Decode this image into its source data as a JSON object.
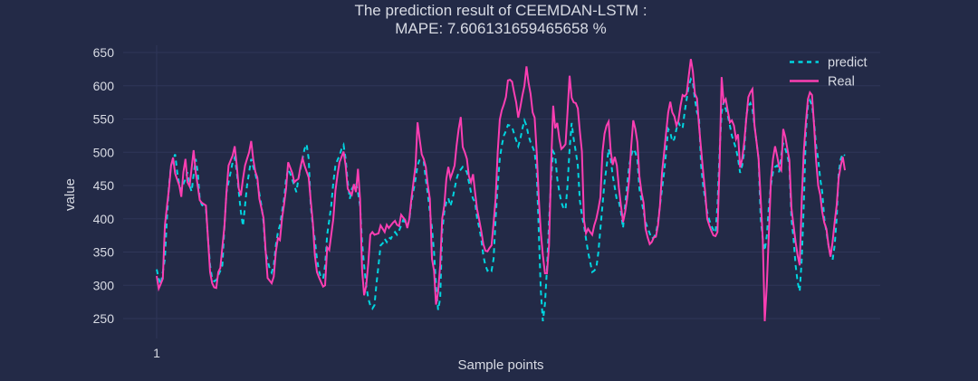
{
  "title": {
    "line1": "The prediction result of CEEMDAN-LSTM :",
    "line2": "MAPE: 7.606131659465658 %"
  },
  "legend": {
    "items": [
      {
        "label": "predict",
        "color": "#00d5e0",
        "dash": "dashed"
      },
      {
        "label": "Real",
        "color": "#fb3eb2",
        "dash": "solid"
      }
    ]
  },
  "axes": {
    "y_title": "value",
    "x_title": "Sample points",
    "y_ticks": [
      650,
      600,
      550,
      500,
      450,
      400,
      350,
      300,
      250
    ],
    "x_ticks": [
      "1"
    ]
  },
  "colors": {
    "background": "#232a47",
    "gridline": "#2f3659",
    "text": "#d8dbe4",
    "predict_line": "#00d5e0",
    "real_line": "#fb3eb2"
  },
  "chart_data": {
    "type": "line",
    "title": "The prediction result of CEEMDAN-LSTM : MAPE: 7.606131659465658 %",
    "xlabel": "Sample points",
    "ylabel": "value",
    "x_start": 1,
    "x_step": 1,
    "n_points": 336,
    "ylim": [
      230,
      660
    ],
    "y_ticks": [
      250,
      300,
      350,
      400,
      450,
      500,
      550,
      600,
      650
    ],
    "grid": true,
    "legend_position": "top-right",
    "series": [
      {
        "name": "predict",
        "style": "dashed",
        "color": "#00d5e0",
        "values": [
          324,
          310,
          301,
          320,
          340,
          400,
          450,
          480,
          488,
          497,
          470,
          452,
          443,
          452,
          460,
          470,
          450,
          441,
          466,
          490,
          470,
          430,
          421,
          418,
          415,
          370,
          330,
          310,
          306,
          308,
          315,
          322,
          330,
          390,
          440,
          455,
          470,
          485,
          492,
          470,
          440,
          410,
          389,
          420,
          450,
          470,
          490,
          478,
          468,
          455,
          438,
          420,
          395,
          350,
          338,
          325,
          319,
          330,
          360,
          380,
          390,
          410,
          430,
          460,
          475,
          468,
          459,
          450,
          440,
          460,
          475,
          490,
          505,
          512,
          490,
          420,
          390,
          369,
          340,
          322,
          312,
          310,
          330,
          376,
          398,
          420,
          455,
          480,
          488,
          495,
          505,
          511,
          490,
          455,
          430,
          445,
          450,
          454,
          440,
          420,
          364,
          330,
          300,
          280,
          270,
          265,
          270,
          302,
          330,
          360,
          363,
          370,
          365,
          372,
          370,
          376,
          380,
          376,
          382,
          390,
          398,
          394,
          389,
          398,
          425,
          442,
          460,
          480,
          489,
          488,
          486,
          460,
          436,
          410,
          387,
          350,
          300,
          263,
          280,
          380,
          410,
          425,
          431,
          419,
          430,
          445,
          460,
          470,
          474,
          478,
          475,
          470,
          455,
          440,
          430,
          425,
          400,
          387,
          370,
          345,
          330,
          322,
          325,
          322,
          340,
          400,
          450,
          490,
          510,
          525,
          532,
          541,
          540,
          538,
          528,
          518,
          509,
          520,
          535,
          548,
          540,
          525,
          515,
          508,
          500,
          470,
          380,
          292,
          246,
          272,
          325,
          395,
          460,
          501,
          495,
          460,
          440,
          425,
          416,
          414,
          450,
          505,
          544,
          520,
          501,
          480,
          428,
          405,
          390,
          370,
          350,
          335,
          320,
          322,
          326,
          350,
          385,
          420,
          455,
          478,
          505,
          490,
          465,
          447,
          428,
          426,
          410,
          386,
          420,
          450,
          480,
          495,
          505,
          500,
          488,
          445,
          428,
          410,
          395,
          386,
          378,
          370,
          372,
          378,
          395,
          420,
          445,
          470,
          500,
          535,
          530,
          516,
          520,
          535,
          545,
          538,
          536,
          560,
          580,
          600,
          610,
          605,
          580,
          560,
          553,
          480,
          450,
          430,
          410,
          398,
          390,
          383,
          379,
          420,
          500,
          560,
          576,
          565,
          555,
          540,
          525,
          515,
          505,
          490,
          469,
          480,
          500,
          555,
          570,
          574,
          565,
          540,
          516,
          490,
          400,
          370,
          352,
          375,
          420,
          450,
          470,
          478,
          480,
          470,
          495,
          514,
          505,
          495,
          480,
          400,
          370,
          330,
          305,
          291,
          340,
          420,
          530,
          570,
          578,
          570,
          545,
          510,
          490,
          460,
          440,
          400,
          380,
          360,
          345,
          338,
          360,
          400,
          470,
          490,
          498,
          495
        ]
      },
      {
        "name": "Real",
        "style": "solid",
        "color": "#fb3eb2",
        "values": [
          314,
          295,
          302,
          310,
          390,
          418,
          445,
          480,
          492,
          468,
          459,
          450,
          433,
          470,
          490,
          455,
          449,
          476,
          503,
          470,
          449,
          428,
          424,
          422,
          420,
          370,
          320,
          303,
          297,
          296,
          320,
          326,
          358,
          390,
          440,
          480,
          488,
          495,
          509,
          480,
          445,
          435,
          460,
          480,
          490,
          500,
          517,
          490,
          471,
          462,
          430,
          416,
          401,
          355,
          311,
          307,
          303,
          313,
          350,
          371,
          368,
          400,
          422,
          445,
          485,
          477,
          469,
          455,
          458,
          460,
          478,
          491,
          480,
          471,
          462,
          428,
          395,
          345,
          320,
          312,
          305,
          298,
          300,
          357,
          353,
          376,
          400,
          442,
          465,
          485,
          493,
          501,
          480,
          445,
          440,
          436,
          452,
          440,
          475,
          430,
          322,
          285,
          300,
          333,
          376,
          380,
          376,
          377,
          378,
          390,
          385,
          380,
          391,
          386,
          390,
          394,
          397,
          391,
          389,
          406,
          402,
          398,
          386,
          400,
          430,
          455,
          480,
          545,
          520,
          497,
          490,
          478,
          450,
          430,
          340,
          322,
          271,
          290,
          330,
          400,
          420,
          460,
          478,
          461,
          470,
          480,
          510,
          535,
          553,
          508,
          500,
          490,
          464,
          455,
          467,
          440,
          414,
          398,
          382,
          362,
          352,
          351,
          356,
          360,
          394,
          430,
          500,
          549,
          563,
          572,
          583,
          608,
          609,
          606,
          590,
          575,
          552,
          568,
          585,
          600,
          629,
          605,
          588,
          560,
          552,
          500,
          430,
          380,
          345,
          318,
          318,
          360,
          480,
          570,
          536,
          544,
          520,
          505,
          508,
          512,
          560,
          615,
          582,
          575,
          574,
          566,
          532,
          501,
          398,
          378,
          385,
          380,
          376,
          390,
          400,
          415,
          432,
          500,
          528,
          540,
          546,
          502,
          481,
          493,
          480,
          447,
          420,
          395,
          410,
          430,
          460,
          510,
          548,
          535,
          515,
          464,
          440,
          424,
          385,
          372,
          362,
          365,
          372,
          373,
          390,
          420,
          470,
          500,
          530,
          560,
          576,
          560,
          554,
          540,
          548,
          570,
          586,
          584,
          588,
          615,
          640,
          622,
          588,
          581,
          540,
          505,
          470,
          440,
          400,
          390,
          382,
          375,
          374,
          380,
          480,
          613,
          575,
          580,
          562,
          545,
          548,
          540,
          520,
          527,
          477,
          490,
          515,
          550,
          583,
          590,
          595,
          540,
          516,
          490,
          430,
          370,
          246,
          300,
          380,
          457,
          490,
          509,
          495,
          478,
          473,
          535,
          523,
          505,
          488,
          416,
          390,
          365,
          345,
          330,
          430,
          500,
          545,
          580,
          590,
          586,
          540,
          488,
          450,
          436,
          410,
          394,
          385,
          360,
          343,
          365,
          395,
          420,
          462,
          480,
          493,
          473
        ]
      }
    ]
  }
}
